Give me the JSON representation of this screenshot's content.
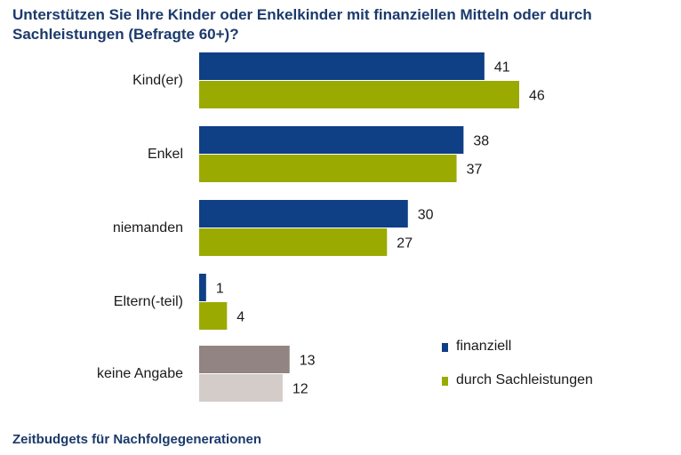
{
  "title": "Unterstützen Sie Ihre Kinder oder Enkelkinder mit finanziellen Mitteln oder durch Sachleistungen (Befragte 60+)?",
  "footer": "Zeitbudgets für Nachfolgegenerationen",
  "colors": {
    "finanziell": "#0f3f85",
    "sachleistungen": "#9aaa00",
    "keine_angabe_1": "#918482",
    "keine_angabe_2": "#d3ccc9"
  },
  "legend": [
    {
      "label": "finanziell",
      "color": "#0f3f85"
    },
    {
      "label": "durch Sachleistungen",
      "color": "#9aaa00"
    }
  ],
  "chart_data": {
    "type": "bar",
    "orientation": "horizontal",
    "categories": [
      "Kind(er)",
      "Enkel",
      "niemanden",
      "Eltern(-teil)",
      "keine Angabe"
    ],
    "series": [
      {
        "name": "finanziell",
        "values": [
          41,
          38,
          30,
          1,
          13
        ]
      },
      {
        "name": "durch Sachleistungen",
        "values": [
          46,
          37,
          27,
          4,
          12
        ]
      }
    ],
    "xlim": [
      0,
      50
    ],
    "grid": false,
    "legend_position": "bottom-right"
  }
}
